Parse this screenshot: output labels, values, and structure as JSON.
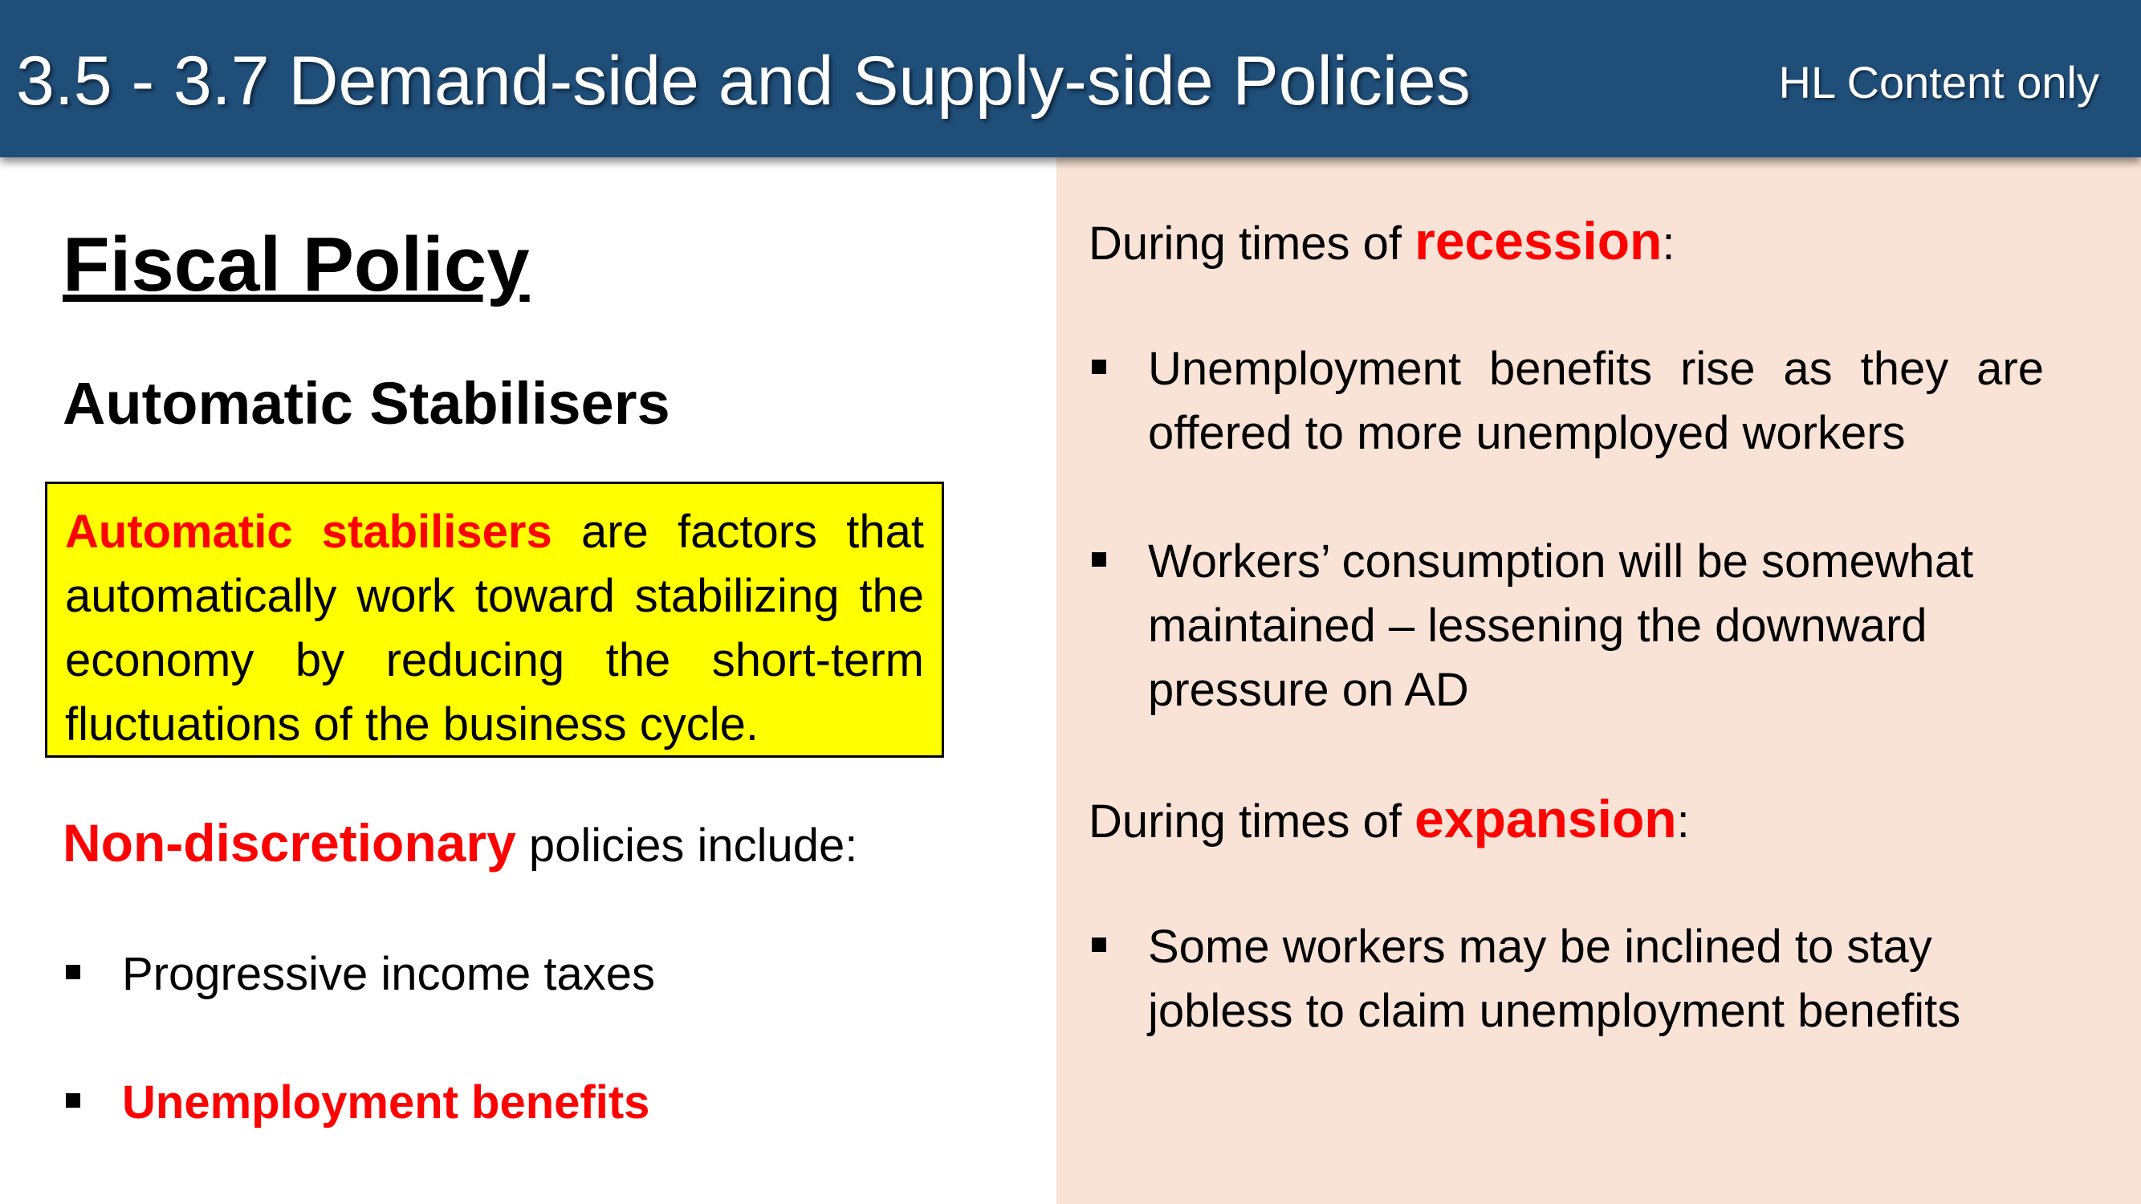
{
  "header": {
    "title": "3.5 - 3.7 Demand-side and Supply-side Policies",
    "tag": "HL Content only"
  },
  "left": {
    "heading": "Fiscal Policy",
    "subheading": "Automatic Stabilisers",
    "definition": {
      "term": "Automatic stabilisers",
      "text": " are factors that automatically work toward stabilizing the economy by reducing the short-term fluctuations  of the business cycle."
    },
    "policies_intro": {
      "term": "Non-discretionary",
      "text": " policies include:"
    },
    "policies": [
      "Progressive income taxes",
      "Unemployment benefits"
    ]
  },
  "right": {
    "recession": {
      "prefix": "During times of ",
      "term": "recession",
      "suffix": ":",
      "points": [
        "Unemployment benefits rise as they are offered to more unemployed workers",
        "Workers’ consumption will be somewhat maintained – lessening the downward pressure on AD"
      ]
    },
    "expansion": {
      "prefix": "During times of ",
      "term": "expansion",
      "suffix": ":",
      "points": [
        "Some workers may be inclined to stay jobless to claim unemployment benefits"
      ]
    }
  },
  "colors": {
    "header_bg": "#1f4e79",
    "accent_red": "#ff0000",
    "definition_box": "#ffff00",
    "right_panel_bg": "#f9e3d7"
  }
}
